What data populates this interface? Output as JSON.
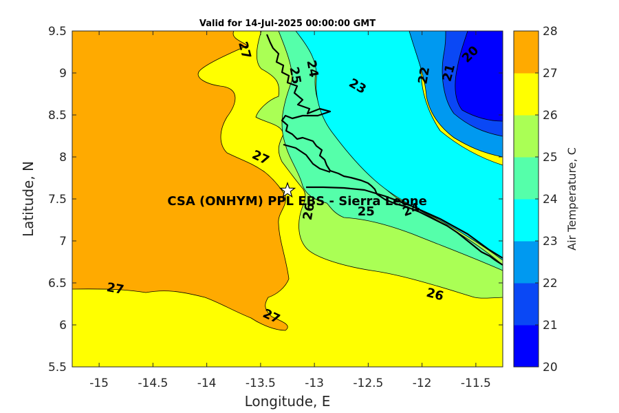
{
  "chart_data": {
    "type": "contour_map",
    "title": "Valid for 14-Jul-2025 00:00:00 GMT",
    "xlabel": "Longitude, E",
    "ylabel": "Latitude, N",
    "xlim": [
      -15.25,
      -11.25
    ],
    "ylim": [
      5.5,
      9.5
    ],
    "xticks": [
      -15,
      -14.5,
      -14,
      -13.5,
      -13,
      -12.5,
      -12,
      -11.5
    ],
    "xtick_labels": [
      "-15",
      "-14.5",
      "-14",
      "-13.5",
      "-13",
      "-12.5",
      "-12",
      "-11.5"
    ],
    "yticks": [
      5.5,
      6,
      6.5,
      7,
      7.5,
      8,
      8.5,
      9,
      9.5
    ],
    "ytick_labels": [
      "5.5",
      "6",
      "6.5",
      "7",
      "7.5",
      "8",
      "8.5",
      "9",
      "9.5"
    ],
    "grid": false,
    "colorbar": {
      "label": "Air Temperature, C",
      "levels": [
        20,
        21,
        22,
        23,
        24,
        25,
        26,
        27,
        28
      ],
      "level_labels": [
        "20",
        "21",
        "22",
        "23",
        "24",
        "25",
        "26",
        "27",
        "28"
      ],
      "colors": [
        "#0000ff",
        "#0a48f5",
        "#0099f0",
        "#00ffff",
        "#55ffaa",
        "#aaff55",
        "#ffff00",
        "#ffaa00",
        "#ff5500"
      ]
    },
    "contour_labels": [
      {
        "text": "27",
        "x": -13.65,
        "y": 9.27,
        "rot": 75
      },
      {
        "text": "27",
        "x": -13.5,
        "y": 7.99,
        "rot": 25
      },
      {
        "text": "27",
        "x": -14.85,
        "y": 6.43,
        "rot": 10
      },
      {
        "text": "27",
        "x": -13.4,
        "y": 6.1,
        "rot": 25
      },
      {
        "text": "24",
        "x": -13.02,
        "y": 9.05,
        "rot": 80
      },
      {
        "text": "25",
        "x": -13.18,
        "y": 8.97,
        "rot": 80
      },
      {
        "text": "23",
        "x": -12.6,
        "y": 8.84,
        "rot": 30
      },
      {
        "text": "22",
        "x": -11.98,
        "y": 8.97,
        "rot": -80
      },
      {
        "text": "21",
        "x": -11.75,
        "y": 9.0,
        "rot": -75
      },
      {
        "text": "20",
        "x": -11.55,
        "y": 9.22,
        "rot": -45
      },
      {
        "text": "26",
        "x": -13.05,
        "y": 7.35,
        "rot": -80
      },
      {
        "text": "25",
        "x": -12.52,
        "y": 7.35,
        "rot": 0
      },
      {
        "text": "24",
        "x": -12.1,
        "y": 7.37,
        "rot": -20
      },
      {
        "text": "26",
        "x": -11.88,
        "y": 6.36,
        "rot": 15
      }
    ],
    "station": {
      "label": "CSA (ONHYM) PPL EBS  - Sierra Leone",
      "lon": -13.25,
      "lat": 7.6
    }
  }
}
